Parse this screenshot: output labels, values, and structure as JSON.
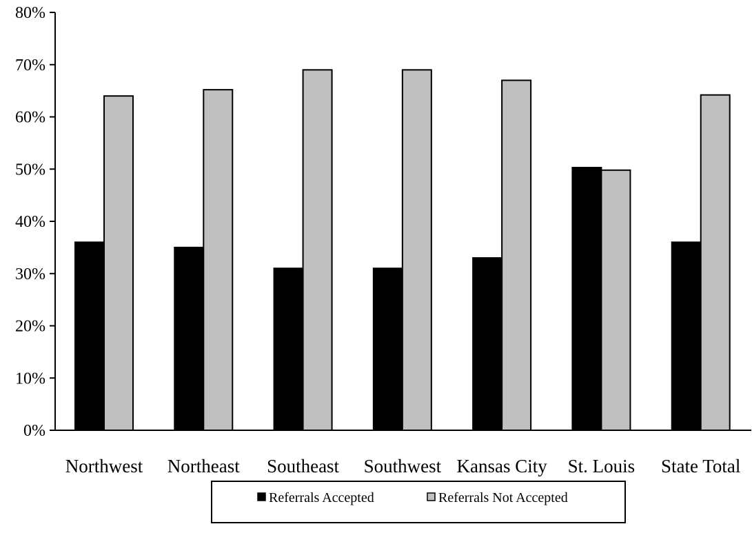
{
  "chart_data": {
    "type": "bar",
    "title": "",
    "xlabel": "",
    "ylabel": "",
    "ylim": [
      0,
      0.8
    ],
    "y_ticks": [
      "0%",
      "10%",
      "20%",
      "30%",
      "40%",
      "50%",
      "60%",
      "70%",
      "80%"
    ],
    "categories": [
      "Northwest",
      "Northeast",
      "Southeast",
      "Southwest",
      "Kansas City",
      "St. Louis",
      "State Total"
    ],
    "series": [
      {
        "name": "Referrals Accepted",
        "color": "#000000",
        "values": [
          0.36,
          0.35,
          0.31,
          0.31,
          0.33,
          0.503,
          0.36
        ]
      },
      {
        "name": "Referrals Not Accepted",
        "color": "#c0c0c0",
        "values": [
          0.64,
          0.652,
          0.69,
          0.69,
          0.67,
          0.498,
          0.642
        ]
      }
    ],
    "grid": false,
    "legend_position": "bottom-center"
  }
}
